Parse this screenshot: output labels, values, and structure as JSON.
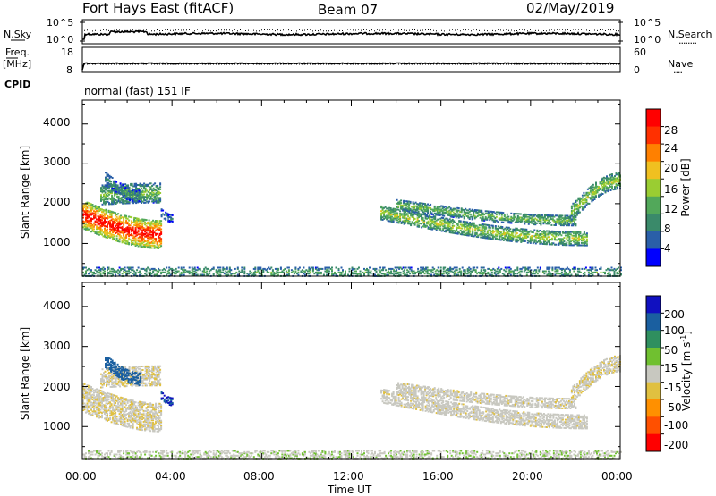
{
  "header": {
    "station": "Fort Hays East (fitACF)",
    "beam": "Beam 07",
    "date": "02/May/2019"
  },
  "rows": {
    "nsky_label": "N.Sky",
    "nsearch_label": "N.Search",
    "nsearch_dots": "........",
    "nsky_ticks": [
      "10^5",
      "10^0"
    ],
    "nsearch_ticks": [
      "10^5",
      "10^0"
    ],
    "freq_label_1": "Freq.",
    "freq_label_2": "[MHz]",
    "freq_ticks": [
      "18",
      "8"
    ],
    "nave_label": "Nave",
    "nave_dots": "....",
    "nave_ticks": [
      "60",
      "0"
    ],
    "cpid_label": "CPID",
    "cpid_value": "normal (fast) 151 IF"
  },
  "panels": {
    "ylabel": "Slant Range [km]",
    "yticks": [
      "1000",
      "2000",
      "3000",
      "4000"
    ],
    "xlabel": "Time UT",
    "xticks": [
      "00:00",
      "04:00",
      "08:00",
      "12:00",
      "16:00",
      "20:00",
      "00:00"
    ]
  },
  "power_scale": {
    "label": "Power [dB]",
    "ticks": [
      "4",
      "8",
      "12",
      "16",
      "20",
      "24",
      "28"
    ],
    "colors": [
      "#0000ff",
      "#2a5fa8",
      "#3a8a6a",
      "#52a85a",
      "#9acd32",
      "#f0c020",
      "#ff8000",
      "#ff3000",
      "#ff0000"
    ]
  },
  "velocity_scale": {
    "label": "Velocity [m s",
    "label_sup": "-1",
    "label_end": "]",
    "ticks": [
      "200",
      "100",
      "50",
      "15",
      "-15",
      "-50",
      "-100",
      "-200"
    ],
    "colors": [
      "#1010c0",
      "#1a5fa0",
      "#2f8f5f",
      "#70c030",
      "#c8c8c0",
      "#e0c040",
      "#ff9000",
      "#ff5000",
      "#ff0000"
    ]
  },
  "chart_data": {
    "type": "heatmap",
    "title": "Fort Hays East (fitACF)",
    "x": {
      "label": "Time UT",
      "range_hours": [
        0,
        24
      ],
      "ticks": [
        "00:00",
        "04:00",
        "08:00",
        "12:00",
        "16:00",
        "20:00",
        "00:00"
      ]
    },
    "y": {
      "label": "Slant Range [km]",
      "range": [
        180,
        4600
      ],
      "ticks": [
        1000,
        2000,
        3000,
        4000
      ]
    },
    "panels": [
      {
        "quantity": "Power",
        "unit": "dB",
        "scale": [
          0,
          32
        ]
      },
      {
        "quantity": "Velocity",
        "unit": "m s^-1",
        "scale": [
          -250,
          250
        ]
      }
    ],
    "echo_regions": [
      {
        "t_start": 0.0,
        "t_end": 3.5,
        "range_center": [
          1750,
          1250
        ],
        "range_width": 700,
        "power_db": 26,
        "velocity": -10
      },
      {
        "t_start": 0.8,
        "t_end": 3.5,
        "range_center": [
          2250,
          2300
        ],
        "range_width": 500,
        "power_db": 12,
        "velocity": -10
      },
      {
        "t_start": 1.0,
        "t_end": 2.6,
        "range_center": [
          2650,
          2200
        ],
        "range_width": 300,
        "power_db": 8,
        "velocity": 180
      },
      {
        "t_start": 3.5,
        "t_end": 4.0,
        "range_center": [
          1800,
          1650
        ],
        "range_width": 200,
        "power_db": 6,
        "velocity": 200
      },
      {
        "t_start": 13.3,
        "t_end": 22.5,
        "range_center": [
          1800,
          1150
        ],
        "range_width": 350,
        "power_db": 14,
        "velocity": -5
      },
      {
        "t_start": 14.0,
        "t_end": 22.0,
        "range_center": [
          2000,
          1600
        ],
        "range_width": 250,
        "power_db": 12,
        "velocity": -5
      },
      {
        "t_start": 21.8,
        "t_end": 24.0,
        "range_center": [
          1800,
          2600
        ],
        "range_width": 400,
        "power_db": 14,
        "velocity": -10
      },
      {
        "t_start": 0.0,
        "t_end": 24.0,
        "range_center": [
          300,
          300
        ],
        "range_width": 250,
        "power_db": 10,
        "velocity": 10
      }
    ]
  }
}
